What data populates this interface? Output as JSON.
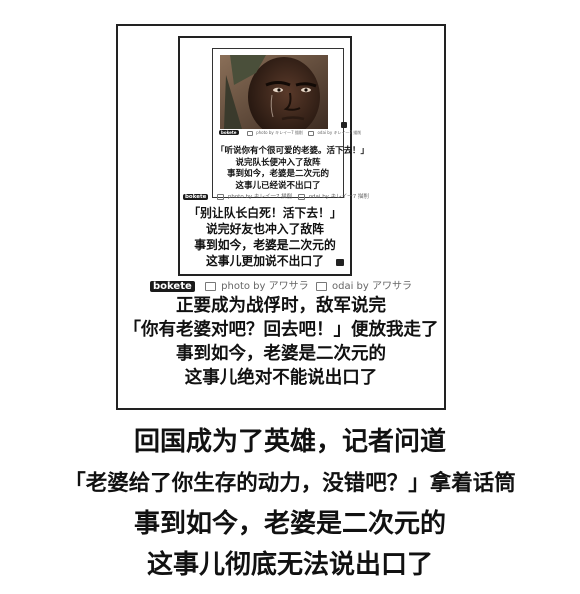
{
  "credits": {
    "brand": "bokete",
    "photo_prefix": "photo by",
    "odai_prefix": "odai by",
    "author": "アワサラ",
    "inner_author": "キレイ一7 描削"
  },
  "caption1": {
    "lines": [
      "「听说你有个很可爱的老婆。活下去！」",
      "说完队长便冲入了敌阵",
      "事到如今，老婆是二次元的",
      "这事儿已经说不出口了"
    ]
  },
  "caption2": {
    "lines": [
      "「别让队长白死！活下去！」",
      "说完好友也冲入了敌阵",
      "事到如今，老婆是二次元的",
      "这事儿更加说不出口了"
    ]
  },
  "caption3": {
    "lines": [
      "正要成为战俘时，敌军说完",
      "「你有老婆对吧？回去吧！」便放我走了",
      "事到如今，老婆是二次元的",
      "这事儿绝对不能说出口了"
    ]
  },
  "caption4": {
    "lines": [
      "回国成为了英雄，记者问道",
      "「老婆给了你生存的动力，没错吧？」拿着话筒",
      "事到如今，老婆是二次元的",
      "这事儿彻底无法说出口了"
    ]
  }
}
